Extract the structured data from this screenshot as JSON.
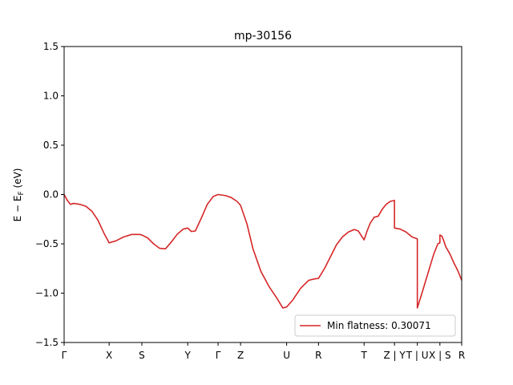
{
  "chart_data": {
    "type": "line",
    "title": "mp-30156",
    "xlabel": "",
    "ylabel": "E − E_F (eV)",
    "ylabel_main": "E − E",
    "ylabel_sub": "F",
    "ylabel_unit": " (eV)",
    "ylim": [
      -1.5,
      1.5
    ],
    "xlim": [
      0,
      1
    ],
    "y_ticks": [
      -1.5,
      -1.0,
      -0.5,
      0.0,
      0.5,
      1.0,
      1.5
    ],
    "y_tick_labels": [
      "−1.5",
      "−1.0",
      "−0.5",
      "0.0",
      "0.5",
      "1.0",
      "1.5"
    ],
    "x_ticks": [
      {
        "label": "Γ",
        "x": 0.0
      },
      {
        "label": "X",
        "x": 0.1132
      },
      {
        "label": "S",
        "x": 0.1955
      },
      {
        "label": "Y",
        "x": 0.3109
      },
      {
        "label": "Γ",
        "x": 0.3872
      },
      {
        "label": "Z",
        "x": 0.4438
      },
      {
        "label": "U",
        "x": 0.5597
      },
      {
        "label": "R",
        "x": 0.6398
      },
      {
        "label": "T",
        "x": 0.7545
      },
      {
        "label": "Z | Y",
        "x": 0.8309
      },
      {
        "label": "T | U",
        "x": 0.8884
      },
      {
        "label": "X | S",
        "x": 0.9452
      },
      {
        "label": "R",
        "x": 1.0
      }
    ],
    "grid": false,
    "legend": {
      "location": "lower-right",
      "entries": [
        "Min flatness: 0.30071"
      ]
    },
    "series": [
      {
        "name": "Min flatness: 0.30071",
        "color": "#d62728",
        "points": [
          [
            0.0,
            0.0
          ],
          [
            0.008,
            -0.06
          ],
          [
            0.016,
            -0.1
          ],
          [
            0.024,
            -0.09
          ],
          [
            0.04,
            -0.1
          ],
          [
            0.055,
            -0.12
          ],
          [
            0.07,
            -0.17
          ],
          [
            0.085,
            -0.26
          ],
          [
            0.1,
            -0.39
          ],
          [
            0.1132,
            -0.49
          ],
          [
            0.13,
            -0.47
          ],
          [
            0.15,
            -0.43
          ],
          [
            0.17,
            -0.405
          ],
          [
            0.19,
            -0.405
          ],
          [
            0.1955,
            -0.41
          ],
          [
            0.21,
            -0.44
          ],
          [
            0.225,
            -0.5
          ],
          [
            0.24,
            -0.545
          ],
          [
            0.255,
            -0.55
          ],
          [
            0.27,
            -0.48
          ],
          [
            0.285,
            -0.4
          ],
          [
            0.3,
            -0.35
          ],
          [
            0.3109,
            -0.34
          ],
          [
            0.32,
            -0.375
          ],
          [
            0.33,
            -0.37
          ],
          [
            0.345,
            -0.24
          ],
          [
            0.36,
            -0.1
          ],
          [
            0.375,
            -0.02
          ],
          [
            0.3872,
            -0.0
          ],
          [
            0.405,
            -0.01
          ],
          [
            0.42,
            -0.03
          ],
          [
            0.435,
            -0.07
          ],
          [
            0.4438,
            -0.11
          ],
          [
            0.46,
            -0.3
          ],
          [
            0.475,
            -0.55
          ],
          [
            0.495,
            -0.78
          ],
          [
            0.515,
            -0.93
          ],
          [
            0.535,
            -1.05
          ],
          [
            0.55,
            -1.15
          ],
          [
            0.5597,
            -1.14
          ],
          [
            0.575,
            -1.07
          ],
          [
            0.595,
            -0.95
          ],
          [
            0.615,
            -0.87
          ],
          [
            0.63,
            -0.855
          ],
          [
            0.6398,
            -0.85
          ],
          [
            0.655,
            -0.75
          ],
          [
            0.67,
            -0.63
          ],
          [
            0.685,
            -0.51
          ],
          [
            0.7,
            -0.43
          ],
          [
            0.715,
            -0.38
          ],
          [
            0.73,
            -0.355
          ],
          [
            0.74,
            -0.37
          ],
          [
            0.748,
            -0.42
          ],
          [
            0.7545,
            -0.46
          ],
          [
            0.762,
            -0.37
          ],
          [
            0.77,
            -0.29
          ],
          [
            0.78,
            -0.23
          ],
          [
            0.79,
            -0.22
          ],
          [
            0.8,
            -0.15
          ],
          [
            0.81,
            -0.1
          ],
          [
            0.82,
            -0.07
          ],
          [
            0.8309,
            -0.06
          ],
          [
            0.8309,
            -0.34
          ],
          [
            0.845,
            -0.35
          ],
          [
            0.86,
            -0.38
          ],
          [
            0.875,
            -0.43
          ],
          [
            0.8884,
            -0.45
          ],
          [
            0.8884,
            -1.15
          ],
          [
            0.9,
            -1.0
          ],
          [
            0.915,
            -0.8
          ],
          [
            0.93,
            -0.6
          ],
          [
            0.94,
            -0.5
          ],
          [
            0.9452,
            -0.49
          ],
          [
            0.9452,
            -0.41
          ],
          [
            0.95,
            -0.42
          ],
          [
            0.955,
            -0.47
          ],
          [
            0.96,
            -0.53
          ],
          [
            0.97,
            -0.6
          ],
          [
            0.98,
            -0.69
          ],
          [
            0.99,
            -0.77
          ],
          [
            1.0,
            -0.87
          ]
        ]
      }
    ]
  }
}
